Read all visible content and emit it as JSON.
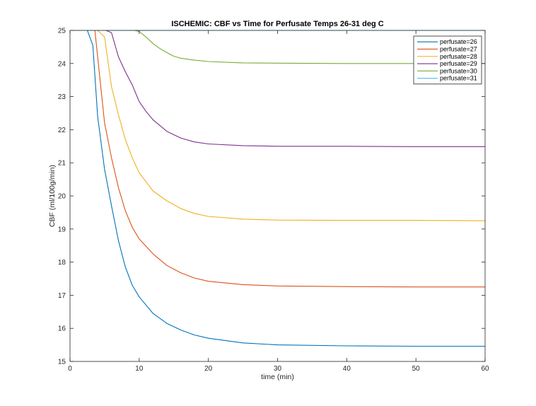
{
  "chart_data": {
    "type": "line",
    "title": "ISCHEMIC: CBF vs Time for Perfusate Temps 26-31 deg C",
    "xlabel": "time (min)",
    "ylabel": "CBF (ml/100g/min)",
    "xlim": [
      0,
      60
    ],
    "ylim": [
      15,
      25
    ],
    "xticks": [
      0,
      10,
      20,
      30,
      40,
      50,
      60
    ],
    "yticks": [
      15,
      16,
      17,
      18,
      19,
      20,
      21,
      22,
      23,
      24,
      25
    ],
    "grid": false,
    "legend_position": "top-right",
    "series": [
      {
        "name": "perfusate=26",
        "color": "#0072BD",
        "x": [
          0,
          2.5,
          3.3,
          4,
          5,
          6,
          7,
          8,
          9,
          10,
          12,
          14,
          16,
          18,
          20,
          25,
          30,
          40,
          50,
          60
        ],
        "y": [
          25,
          25,
          24.55,
          22.4,
          20.8,
          19.7,
          18.65,
          17.85,
          17.3,
          16.95,
          16.45,
          16.15,
          15.95,
          15.8,
          15.7,
          15.56,
          15.5,
          15.47,
          15.46,
          15.46
        ]
      },
      {
        "name": "perfusate=27",
        "color": "#D95319",
        "x": [
          0,
          3.6,
          4,
          5,
          6,
          7,
          8,
          9,
          10,
          12,
          14,
          16,
          18,
          20,
          25,
          30,
          40,
          50,
          60
        ],
        "y": [
          25,
          25,
          24.2,
          22.2,
          21.15,
          20.25,
          19.55,
          19.05,
          18.7,
          18.25,
          17.9,
          17.68,
          17.52,
          17.42,
          17.32,
          17.28,
          17.26,
          17.25,
          17.25
        ]
      },
      {
        "name": "perfusate=28",
        "color": "#EDB120",
        "x": [
          0,
          4,
          5,
          6,
          7,
          8,
          9,
          10,
          12,
          14,
          16,
          18,
          20,
          25,
          30,
          40,
          50,
          60
        ],
        "y": [
          25,
          25,
          24.8,
          23.3,
          22.45,
          21.7,
          21.15,
          20.7,
          20.15,
          19.85,
          19.62,
          19.47,
          19.38,
          19.3,
          19.27,
          19.26,
          19.26,
          19.25
        ]
      },
      {
        "name": "perfusate=29",
        "color": "#7E2F8E",
        "x": [
          0,
          5.2,
          6,
          7,
          8,
          9,
          10,
          11,
          12,
          14,
          16,
          18,
          20,
          25,
          30,
          40,
          50,
          60
        ],
        "y": [
          25,
          25,
          24.93,
          24.2,
          23.75,
          23.35,
          22.85,
          22.55,
          22.3,
          21.95,
          21.75,
          21.63,
          21.57,
          21.52,
          21.5,
          21.5,
          21.49,
          21.49
        ]
      },
      {
        "name": "perfusate=30",
        "color": "#77AC30",
        "x": [
          0,
          9.3,
          10,
          11,
          12,
          13,
          14,
          15,
          16,
          18,
          20,
          25,
          30,
          40,
          50,
          60
        ],
        "y": [
          25,
          25,
          24.97,
          24.8,
          24.6,
          24.45,
          24.33,
          24.22,
          24.16,
          24.1,
          24.06,
          24.02,
          24.01,
          24.0,
          24.0,
          24.0
        ]
      },
      {
        "name": "perfusate=31",
        "color": "#4DBEEE",
        "x": [
          0,
          60
        ],
        "y": [
          25,
          25
        ]
      }
    ]
  }
}
